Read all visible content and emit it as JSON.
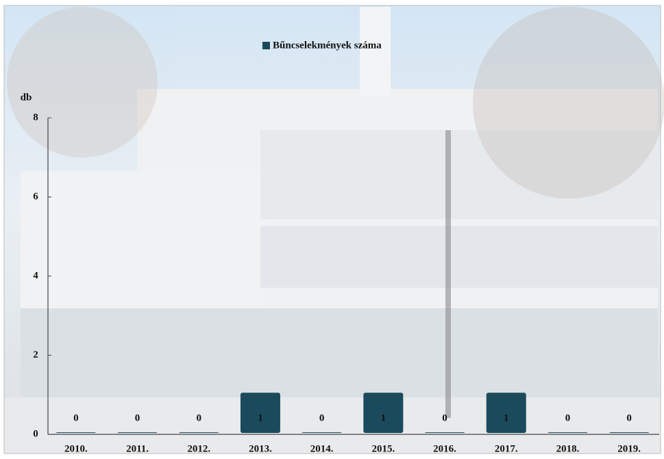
{
  "chart_data": {
    "type": "bar",
    "y_label": "db",
    "categories": [
      "2010.",
      "2011.",
      "2012.",
      "2013.",
      "2014.",
      "2015.",
      "2016.",
      "2017.",
      "2018.",
      "2019."
    ],
    "series": [
      {
        "name": "Bűncselekmények száma",
        "color": "#1b4a5c",
        "values": [
          0,
          0,
          0,
          1,
          0,
          1,
          0,
          1,
          0,
          0
        ]
      }
    ],
    "ylim": [
      0,
      8
    ],
    "yticks": [
      0,
      2,
      4,
      6,
      8
    ],
    "grid": false
  }
}
